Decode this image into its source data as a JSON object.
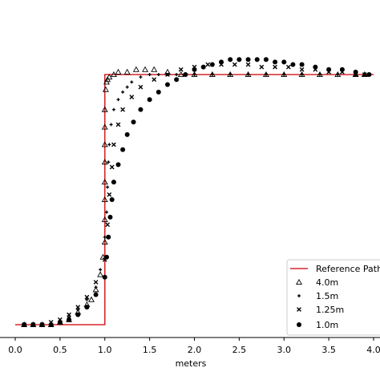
{
  "chart_data": {
    "type": "scatter",
    "title": "",
    "xlabel": "meters",
    "ylabel": "",
    "xlim": [
      -0.1,
      4.05
    ],
    "ylim": [
      -0.05,
      1.08
    ],
    "xticks": [
      0.0,
      0.5,
      1.0,
      1.5,
      2.0,
      2.5,
      3.0,
      3.5,
      4.0
    ],
    "xtick_labels": [
      "0.0",
      "0.5",
      "1.0",
      "1.5",
      "2.0",
      "2.5",
      "3.0",
      "3.5",
      "4.0"
    ],
    "grid": false,
    "legend_position": "bottom-right",
    "reference": {
      "name": "Reference Path",
      "color": "#d62728",
      "x": [
        0.0,
        1.0,
        1.0,
        4.0
      ],
      "y": [
        0.0,
        0.0,
        1.0,
        1.0
      ]
    },
    "series": [
      {
        "name": "4.0m",
        "marker": "triangle",
        "x": [
          0.1,
          0.2,
          0.3,
          0.4,
          0.5,
          0.6,
          0.7,
          0.8,
          0.85,
          0.9,
          0.95,
          0.98,
          1.0,
          1.0,
          1.0,
          1.0,
          1.0,
          1.0,
          1.0,
          1.0,
          1.01,
          1.02,
          1.03,
          1.05,
          1.1,
          1.15,
          1.25,
          1.35,
          1.45,
          1.55,
          1.7,
          1.85,
          2.0,
          2.2,
          2.4,
          2.6,
          2.8,
          3.0,
          3.2,
          3.4,
          3.6,
          3.8,
          3.9
        ],
        "y": [
          0.0,
          0.0,
          0.0,
          0.0,
          0.01,
          0.02,
          0.05,
          0.08,
          0.1,
          0.14,
          0.2,
          0.27,
          0.33,
          0.42,
          0.5,
          0.57,
          0.65,
          0.72,
          0.79,
          0.86,
          0.94,
          0.97,
          0.98,
          0.99,
          1.0,
          1.01,
          1.01,
          1.02,
          1.02,
          1.02,
          1.01,
          1.0,
          1.0,
          1.0,
          1.0,
          1.0,
          1.0,
          1.0,
          1.0,
          1.0,
          1.0,
          1.0,
          1.0
        ]
      },
      {
        "name": "1.5m",
        "marker": "plus",
        "x": [
          0.1,
          0.2,
          0.3,
          0.4,
          0.5,
          0.6,
          0.7,
          0.8,
          0.9,
          0.95,
          1.0,
          1.02,
          1.03,
          1.04,
          1.05,
          1.07,
          1.1,
          1.15,
          1.2,
          1.25,
          1.3,
          1.4,
          1.5,
          1.6,
          1.7,
          1.8,
          2.0,
          2.2,
          2.4,
          2.6,
          2.8,
          3.0,
          3.2,
          3.4,
          3.6,
          3.8,
          3.9
        ],
        "y": [
          0.0,
          0.0,
          0.0,
          0.0,
          0.01,
          0.03,
          0.06,
          0.1,
          0.15,
          0.22,
          0.35,
          0.45,
          0.55,
          0.65,
          0.72,
          0.8,
          0.86,
          0.9,
          0.93,
          0.95,
          0.97,
          0.99,
          1.0,
          1.0,
          1.0,
          1.0,
          1.0,
          1.0,
          1.0,
          1.0,
          1.0,
          1.0,
          1.0,
          1.0,
          1.0,
          1.0,
          1.0
        ]
      },
      {
        "name": "1.25m",
        "marker": "x",
        "x": [
          0.1,
          0.2,
          0.3,
          0.4,
          0.5,
          0.6,
          0.7,
          0.8,
          0.9,
          1.0,
          1.03,
          1.05,
          1.08,
          1.1,
          1.15,
          1.2,
          1.3,
          1.4,
          1.55,
          1.7,
          1.85,
          2.0,
          2.15,
          2.3,
          2.45,
          2.6,
          2.75,
          2.9,
          3.05,
          3.2,
          3.35,
          3.5,
          3.65,
          3.8,
          3.9
        ],
        "y": [
          0.0,
          0.0,
          0.0,
          0.01,
          0.02,
          0.04,
          0.07,
          0.11,
          0.17,
          0.26,
          0.4,
          0.52,
          0.63,
          0.72,
          0.8,
          0.86,
          0.91,
          0.95,
          0.98,
          1.0,
          1.02,
          1.03,
          1.04,
          1.04,
          1.04,
          1.04,
          1.03,
          1.03,
          1.03,
          1.02,
          1.02,
          1.01,
          1.01,
          1.0,
          1.0
        ]
      },
      {
        "name": "1.0m",
        "marker": "circle",
        "x": [
          0.1,
          0.2,
          0.3,
          0.4,
          0.5,
          0.6,
          0.7,
          0.8,
          0.9,
          1.0,
          1.02,
          1.04,
          1.06,
          1.08,
          1.1,
          1.15,
          1.2,
          1.25,
          1.32,
          1.4,
          1.5,
          1.6,
          1.7,
          1.8,
          1.9,
          2.0,
          2.1,
          2.2,
          2.3,
          2.4,
          2.5,
          2.6,
          2.7,
          2.8,
          2.9,
          3.0,
          3.1,
          3.2,
          3.35,
          3.5,
          3.65,
          3.8,
          3.95
        ],
        "y": [
          0.0,
          0.0,
          0.0,
          0.0,
          0.01,
          0.02,
          0.04,
          0.07,
          0.12,
          0.19,
          0.27,
          0.35,
          0.43,
          0.5,
          0.57,
          0.64,
          0.7,
          0.76,
          0.81,
          0.86,
          0.9,
          0.93,
          0.96,
          0.98,
          1.0,
          1.02,
          1.03,
          1.04,
          1.05,
          1.06,
          1.06,
          1.06,
          1.06,
          1.06,
          1.05,
          1.05,
          1.04,
          1.04,
          1.03,
          1.02,
          1.02,
          1.01,
          1.0
        ]
      }
    ]
  }
}
